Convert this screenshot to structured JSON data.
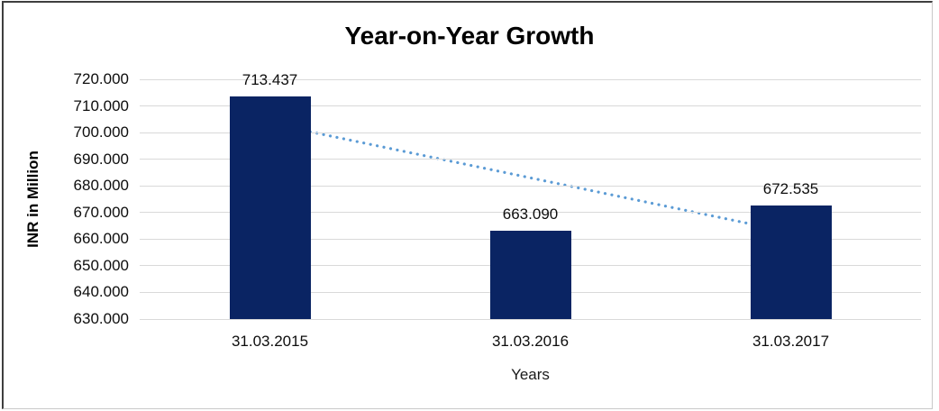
{
  "chart_data": {
    "type": "bar",
    "title": "Year-on-Year Growth",
    "categories": [
      "31.03.2015",
      "31.03.2016",
      "31.03.2017"
    ],
    "values": [
      713.437,
      663.09,
      672.535
    ],
    "data_labels": [
      "713.437",
      "663.090",
      "672.535"
    ],
    "xlabel": "Years",
    "ylabel": "INR in Million",
    "ylim": [
      630,
      720
    ],
    "ytick_step": 10,
    "ytick_labels": [
      "720.000",
      "710.000",
      "700.000",
      "690.000",
      "680.000",
      "670.000",
      "660.000",
      "650.000",
      "640.000",
      "630.000"
    ],
    "grid": true,
    "legend": "none",
    "bar_color": "#0a2463",
    "gridline_color": "#d9d9d9",
    "title_color": "#000000",
    "label_color": "#0d0d0d",
    "trendline": {
      "type": "linear",
      "style": "dotted",
      "color": "#5b9bd5",
      "fitted_start_value": 703.472,
      "fitted_end_value": 662.57
    }
  }
}
